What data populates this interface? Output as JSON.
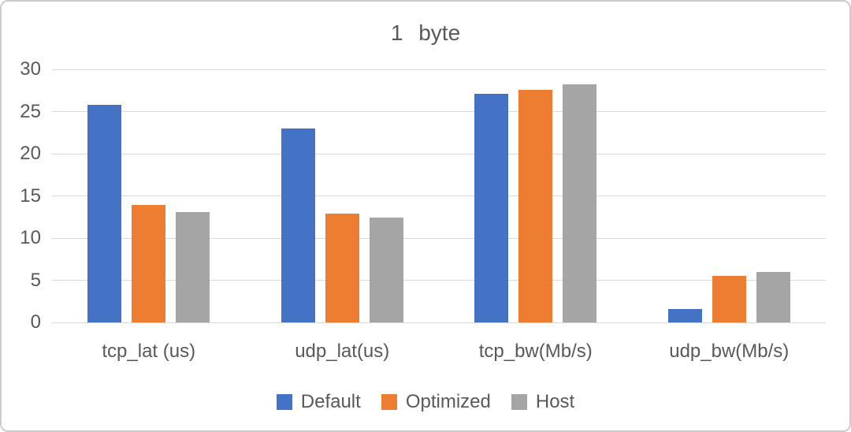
{
  "chart_data": {
    "type": "bar",
    "title": "1 byte",
    "categories": [
      "tcp_lat (us)",
      "udp_lat(us)",
      "tcp_bw(Mb/s)",
      "udp_bw(Mb/s)"
    ],
    "series": [
      {
        "name": "Default",
        "color": "#4472C4",
        "values": [
          25.8,
          23.0,
          27.1,
          1.6
        ]
      },
      {
        "name": "Optimized",
        "color": "#ED7D31",
        "values": [
          13.9,
          12.9,
          27.6,
          5.5
        ]
      },
      {
        "name": "Host",
        "color": "#A5A5A5",
        "values": [
          13.1,
          12.4,
          28.2,
          6.0
        ]
      }
    ],
    "ylim": [
      0,
      30
    ],
    "yticks": [
      0,
      5,
      10,
      15,
      20,
      25,
      30
    ],
    "grid": true,
    "legend_position": "bottom",
    "xlabel": "",
    "ylabel": ""
  },
  "styles": {
    "text_color": "#595959",
    "gridline_color": "#D9D9D9",
    "background": "#FFFFFF",
    "border_color": "#CCCCCC"
  }
}
